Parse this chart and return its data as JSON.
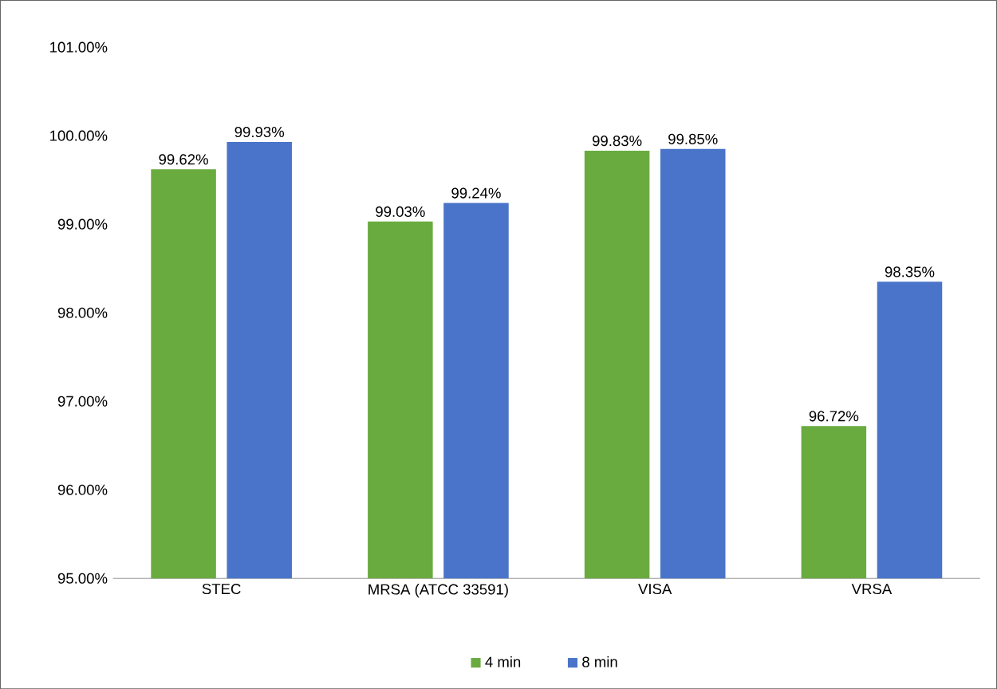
{
  "chart_data": {
    "type": "bar",
    "categories": [
      "STEC",
      "MRSA (ATCC 33591)",
      "VISA",
      "VRSA"
    ],
    "series": [
      {
        "name": "4 min",
        "color": "#6aab3f",
        "values": [
          99.62,
          99.03,
          99.83,
          96.72
        ],
        "value_labels": [
          "99.62%",
          "99.03%",
          "99.83%",
          "96.72%"
        ]
      },
      {
        "name": "8 min",
        "color": "#4a74c9",
        "values": [
          99.93,
          99.24,
          99.85,
          98.35
        ],
        "value_labels": [
          "99.93%",
          "99.24%",
          "99.85%",
          "98.35%"
        ]
      }
    ],
    "ylim": [
      95,
      101
    ],
    "yticks": [
      {
        "value": 95,
        "label": "95.00%"
      },
      {
        "value": 96,
        "label": "96.00%"
      },
      {
        "value": 97,
        "label": "97.00%"
      },
      {
        "value": 98,
        "label": "98.00%"
      },
      {
        "value": 99,
        "label": "99.00%"
      },
      {
        "value": 100,
        "label": "100.00%"
      },
      {
        "value": 101,
        "label": "101.00%"
      }
    ],
    "grid": false,
    "legend": "bottom"
  }
}
